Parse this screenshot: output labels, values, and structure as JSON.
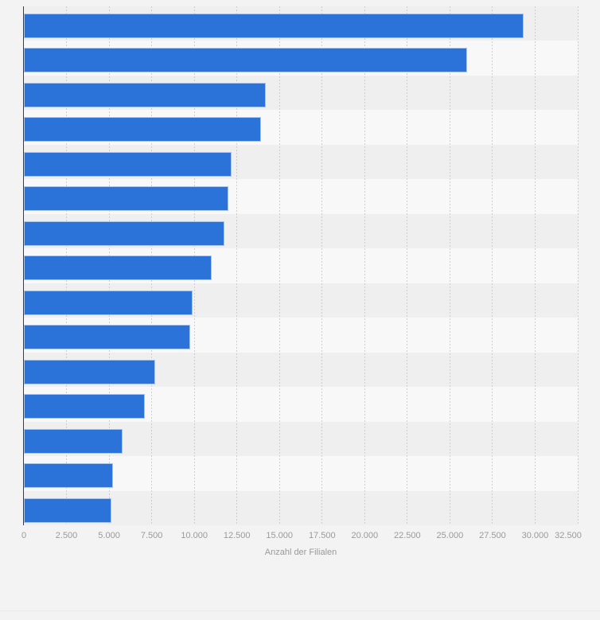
{
  "chart_data": {
    "type": "bar",
    "orientation": "horizontal",
    "title": "",
    "xlabel": "Anzahl der Filialen",
    "ylabel": "",
    "xlim": [
      0,
      32500
    ],
    "xtick_interval": 2500,
    "xtick_values": [
      0,
      2500,
      5000,
      7500,
      10000,
      12500,
      15000,
      17500,
      20000,
      22500,
      25000,
      27500,
      30000,
      32500
    ],
    "xtick_labels": [
      "0",
      "2.500",
      "5.000",
      "7.500",
      "10.000",
      "12.500",
      "15.000",
      "17.500",
      "20.000",
      "22.500",
      "25.000",
      "27.500",
      "30.000",
      "32.500"
    ],
    "categories_visible": false,
    "values": [
      29300,
      26000,
      14200,
      13900,
      12200,
      12000,
      11750,
      11000,
      9900,
      9750,
      7700,
      7100,
      5800,
      5250,
      5130
    ],
    "legend": false,
    "grid": "vertical-dashed",
    "plot_background": "striped-rows",
    "colors": {
      "bar": "#2b73d9",
      "bar_border": "#abc6ee",
      "stripe_dark": "#efefef",
      "stripe_light": "#f8f8f8",
      "page_background": "#f3f3f3",
      "gridline": "#cecece",
      "axis_line": "#3d3d3d",
      "tick_label": "#9a9a9a",
      "axis_title": "#9a9a9a"
    }
  }
}
